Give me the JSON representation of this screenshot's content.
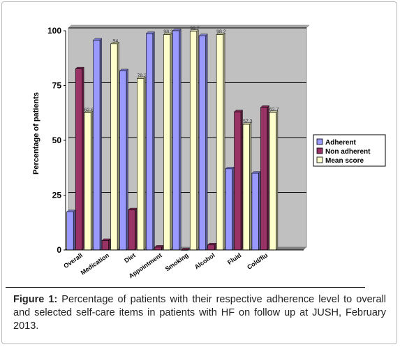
{
  "chart_data": {
    "type": "bar",
    "categories": [
      "Overall",
      "Medication",
      "Diet",
      "Appointment",
      "Smoking",
      "Alcohol",
      "Fluid",
      "Cold/flu"
    ],
    "series": [
      {
        "name": "Adherent",
        "color": "#9999ff",
        "values": [
          17.4,
          95.7,
          81.7,
          98.7,
          100,
          97.7,
          37,
          35
        ]
      },
      {
        "name": "Non adherent",
        "color": "#993366",
        "values": [
          82.6,
          4.3,
          18.3,
          1.3,
          0,
          2.3,
          63,
          65
        ]
      },
      {
        "name": "Mean score",
        "color": "#ffffcc",
        "values": [
          62.6,
          94,
          78.2,
          98.2,
          99.7,
          98.2,
          57.3,
          62.7
        ],
        "data_labels": [
          "62.6",
          "94",
          "78.2",
          "98.2",
          "99.7",
          "98.2",
          "57.3",
          "62.7"
        ]
      }
    ],
    "ylabel": "Percentage of patients",
    "xlabel": "",
    "ylim": [
      0,
      100
    ],
    "yticks": [
      "0",
      "25",
      "50",
      "75",
      "100"
    ],
    "grid": true,
    "legend_position": "right",
    "plot_background": "#c0c0c0"
  },
  "caption": {
    "label": "Figure 1:",
    "text": " Percentage of patients with their respective adherence level to overall and selected self-care items in patients with HF on follow up at JUSH, February 2013."
  }
}
